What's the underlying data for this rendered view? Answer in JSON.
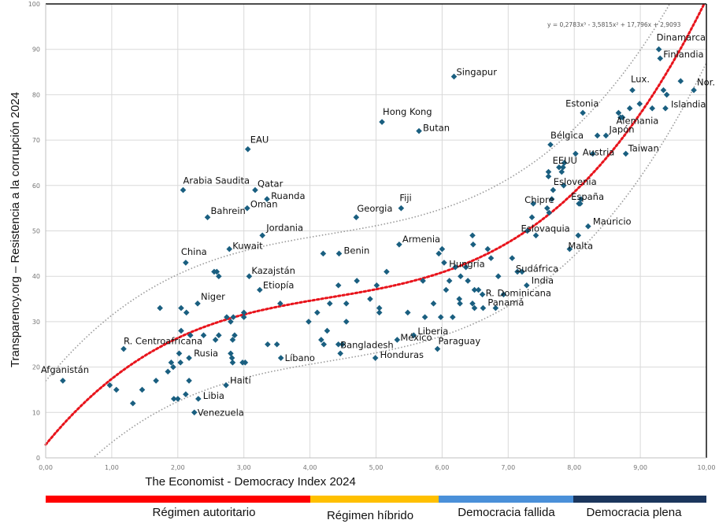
{
  "chart_data": {
    "type": "scatter",
    "title": "",
    "xlabel": "The Economist  - Democracy Index 2024",
    "ylabel": "Transparency.org – Resistencia a la corrupción 2024",
    "xlim": [
      0,
      10
    ],
    "ylim": [
      0,
      100
    ],
    "x_ticks": [
      "0,00",
      "1,00",
      "2,00",
      "3,00",
      "4,00",
      "5,00",
      "6,00",
      "7,00",
      "8,00",
      "9,00",
      "10,00"
    ],
    "y_ticks": [
      "0",
      "10",
      "20",
      "30",
      "40",
      "50",
      "60",
      "70",
      "80",
      "90",
      "100"
    ],
    "grid": true,
    "marker_color": "#1a5f80",
    "trendline": {
      "type": "polynomial",
      "order": 3,
      "equation": "y = 0,2783x³ - 3,5815x² + 17,796x + 2,9093",
      "coefficients": [
        0.2783,
        -3.5815,
        17.796,
        2.9093
      ],
      "color": "#e8141c",
      "band_color": "#9a9a9a",
      "band_offset": 14
    },
    "points": [
      {
        "x": 0.26,
        "y": 17,
        "label": "Afganistán"
      },
      {
        "x": 1.18,
        "y": 24,
        "label": "R. Centroafricana"
      },
      {
        "x": 2.17,
        "y": 22,
        "label": "Rusia"
      },
      {
        "x": 2.12,
        "y": 43,
        "label": "China"
      },
      {
        "x": 2.3,
        "y": 34,
        "label": "Niger"
      },
      {
        "x": 2.08,
        "y": 59,
        "label": "Arabia Saudita"
      },
      {
        "x": 2.45,
        "y": 53,
        "label": "Bahrein"
      },
      {
        "x": 2.78,
        "y": 46,
        "label": "Kuwait"
      },
      {
        "x": 3.06,
        "y": 68,
        "label": "EAU"
      },
      {
        "x": 3.17,
        "y": 59,
        "label": "Qatar"
      },
      {
        "x": 3.35,
        "y": 57,
        "label": "Ruanda"
      },
      {
        "x": 3.05,
        "y": 55,
        "label": "Oman"
      },
      {
        "x": 3.28,
        "y": 49,
        "label": "Jordania"
      },
      {
        "x": 3.08,
        "y": 40,
        "label": "Kazajstán"
      },
      {
        "x": 3.24,
        "y": 37,
        "label": "Etiopía"
      },
      {
        "x": 3.56,
        "y": 22,
        "label": "Líbano"
      },
      {
        "x": 2.73,
        "y": 16,
        "label": "Haití"
      },
      {
        "x": 2.31,
        "y": 13,
        "label": "Libia"
      },
      {
        "x": 2.25,
        "y": 10,
        "label": "Venezuela"
      },
      {
        "x": 4.2,
        "y": 45,
        "label": ""
      },
      {
        "x": 4.44,
        "y": 45,
        "label": "Benin"
      },
      {
        "x": 4.7,
        "y": 53,
        "label": "Georgia"
      },
      {
        "x": 5.38,
        "y": 55,
        "label": "Fiji"
      },
      {
        "x": 5.35,
        "y": 47,
        "label": "Armenia"
      },
      {
        "x": 5.09,
        "y": 74,
        "label": "Hong Kong"
      },
      {
        "x": 5.65,
        "y": 72,
        "label": "Butan"
      },
      {
        "x": 6.18,
        "y": 84,
        "label": "Singapur"
      },
      {
        "x": 4.99,
        "y": 22,
        "label": "Honduras"
      },
      {
        "x": 4.46,
        "y": 23,
        "label": "Bangladesh"
      },
      {
        "x": 5.32,
        "y": 26,
        "label": "México"
      },
      {
        "x": 5.57,
        "y": 27,
        "label": "Liberia"
      },
      {
        "x": 5.93,
        "y": 24,
        "label": "Paraguay"
      },
      {
        "x": 6.2,
        "y": 42,
        "label": "Hungría"
      },
      {
        "x": 6.61,
        "y": 36,
        "label": "R. Dominicana"
      },
      {
        "x": 6.81,
        "y": 33,
        "label": "Panamá"
      },
      {
        "x": 7.28,
        "y": 38,
        "label": "India"
      },
      {
        "x": 7.21,
        "y": 41,
        "label": "Sudáfrica"
      },
      {
        "x": 7.42,
        "y": 49,
        "label": "Eslovaquia"
      },
      {
        "x": 7.93,
        "y": 46,
        "label": "Malta"
      },
      {
        "x": 8.21,
        "y": 51,
        "label": "Mauricio"
      },
      {
        "x": 7.38,
        "y": 56,
        "label": "Chipre"
      },
      {
        "x": 8.07,
        "y": 56,
        "label": "España"
      },
      {
        "x": 7.84,
        "y": 60,
        "label": "Eslovenia"
      },
      {
        "x": 7.85,
        "y": 65,
        "label": "EEUU"
      },
      {
        "x": 8.28,
        "y": 67,
        "label": "Austria"
      },
      {
        "x": 8.78,
        "y": 67,
        "label": "Taiwan"
      },
      {
        "x": 7.64,
        "y": 69,
        "label": "Bélgica"
      },
      {
        "x": 8.48,
        "y": 71,
        "label": "Japón"
      },
      {
        "x": 8.13,
        "y": 76,
        "label": "Estonia"
      },
      {
        "x": 8.73,
        "y": 75,
        "label": "Alemania"
      },
      {
        "x": 8.88,
        "y": 81,
        "label": "Lux."
      },
      {
        "x": 9.38,
        "y": 77,
        "label": "Islandia"
      },
      {
        "x": 9.28,
        "y": 90,
        "label": "Dinamarca"
      },
      {
        "x": 9.3,
        "y": 88,
        "label": "Finlandia"
      },
      {
        "x": 9.81,
        "y": 81,
        "label": "Nor."
      },
      {
        "x": 9.61,
        "y": 83,
        "label": ""
      },
      {
        "x": 9.35,
        "y": 81,
        "label": ""
      },
      {
        "x": 9.4,
        "y": 80,
        "label": ""
      },
      {
        "x": 8.99,
        "y": 78,
        "label": ""
      },
      {
        "x": 9.18,
        "y": 77,
        "label": ""
      },
      {
        "x": 8.84,
        "y": 77,
        "label": ""
      },
      {
        "x": 8.67,
        "y": 76,
        "label": ""
      },
      {
        "x": 8.7,
        "y": 75,
        "label": ""
      },
      {
        "x": 8.35,
        "y": 71,
        "label": ""
      },
      {
        "x": 8.02,
        "y": 67,
        "label": ""
      },
      {
        "x": 7.83,
        "y": 64,
        "label": ""
      },
      {
        "x": 7.77,
        "y": 64,
        "label": ""
      },
      {
        "x": 7.81,
        "y": 63,
        "label": ""
      },
      {
        "x": 7.61,
        "y": 63,
        "label": ""
      },
      {
        "x": 7.61,
        "y": 62,
        "label": ""
      },
      {
        "x": 7.68,
        "y": 59,
        "label": ""
      },
      {
        "x": 7.66,
        "y": 57,
        "label": ""
      },
      {
        "x": 7.36,
        "y": 53,
        "label": ""
      },
      {
        "x": 7.62,
        "y": 54,
        "label": ""
      },
      {
        "x": 8.1,
        "y": 57,
        "label": ""
      },
      {
        "x": 8.09,
        "y": 56,
        "label": ""
      },
      {
        "x": 8.06,
        "y": 49,
        "label": ""
      },
      {
        "x": 7.59,
        "y": 55,
        "label": ""
      },
      {
        "x": 7.29,
        "y": 50,
        "label": ""
      },
      {
        "x": 7.06,
        "y": 44,
        "label": ""
      },
      {
        "x": 7.14,
        "y": 41,
        "label": ""
      },
      {
        "x": 6.93,
        "y": 36,
        "label": ""
      },
      {
        "x": 6.85,
        "y": 40,
        "label": ""
      },
      {
        "x": 6.69,
        "y": 46,
        "label": ""
      },
      {
        "x": 6.74,
        "y": 44,
        "label": ""
      },
      {
        "x": 6.55,
        "y": 37,
        "label": ""
      },
      {
        "x": 6.49,
        "y": 37,
        "label": ""
      },
      {
        "x": 6.46,
        "y": 49,
        "label": ""
      },
      {
        "x": 6.47,
        "y": 47,
        "label": ""
      },
      {
        "x": 6.36,
        "y": 42,
        "label": ""
      },
      {
        "x": 6.39,
        "y": 39,
        "label": ""
      },
      {
        "x": 6.28,
        "y": 40,
        "label": ""
      },
      {
        "x": 6.26,
        "y": 35,
        "label": ""
      },
      {
        "x": 6.27,
        "y": 34,
        "label": ""
      },
      {
        "x": 6.46,
        "y": 34,
        "label": ""
      },
      {
        "x": 6.49,
        "y": 33,
        "label": ""
      },
      {
        "x": 6.62,
        "y": 33,
        "label": ""
      },
      {
        "x": 6.16,
        "y": 31,
        "label": ""
      },
      {
        "x": 6.03,
        "y": 43,
        "label": ""
      },
      {
        "x": 6.11,
        "y": 39,
        "label": ""
      },
      {
        "x": 6.06,
        "y": 37,
        "label": ""
      },
      {
        "x": 5.95,
        "y": 45,
        "label": ""
      },
      {
        "x": 6.0,
        "y": 46,
        "label": ""
      },
      {
        "x": 5.98,
        "y": 31,
        "label": ""
      },
      {
        "x": 5.87,
        "y": 34,
        "label": ""
      },
      {
        "x": 5.74,
        "y": 31,
        "label": ""
      },
      {
        "x": 5.71,
        "y": 39,
        "label": ""
      },
      {
        "x": 5.48,
        "y": 32,
        "label": ""
      },
      {
        "x": 5.16,
        "y": 41,
        "label": ""
      },
      {
        "x": 5.01,
        "y": 38,
        "label": ""
      },
      {
        "x": 5.05,
        "y": 33,
        "label": ""
      },
      {
        "x": 5.05,
        "y": 32,
        "label": ""
      },
      {
        "x": 4.91,
        "y": 35,
        "label": ""
      },
      {
        "x": 4.71,
        "y": 39,
        "label": ""
      },
      {
        "x": 4.55,
        "y": 30,
        "label": ""
      },
      {
        "x": 4.43,
        "y": 38,
        "label": ""
      },
      {
        "x": 4.55,
        "y": 34,
        "label": ""
      },
      {
        "x": 4.3,
        "y": 34,
        "label": ""
      },
      {
        "x": 4.26,
        "y": 28,
        "label": ""
      },
      {
        "x": 4.17,
        "y": 26,
        "label": ""
      },
      {
        "x": 4.11,
        "y": 32,
        "label": ""
      },
      {
        "x": 3.98,
        "y": 30,
        "label": ""
      },
      {
        "x": 4.21,
        "y": 25,
        "label": ""
      },
      {
        "x": 4.43,
        "y": 25,
        "label": ""
      },
      {
        "x": 4.49,
        "y": 25,
        "label": ""
      },
      {
        "x": 3.5,
        "y": 25,
        "label": ""
      },
      {
        "x": 3.36,
        "y": 25,
        "label": ""
      },
      {
        "x": 3.55,
        "y": 34,
        "label": ""
      },
      {
        "x": 3.0,
        "y": 31,
        "label": ""
      },
      {
        "x": 3.0,
        "y": 32,
        "label": ""
      },
      {
        "x": 2.84,
        "y": 31,
        "label": ""
      },
      {
        "x": 2.74,
        "y": 31,
        "label": ""
      },
      {
        "x": 2.86,
        "y": 27,
        "label": ""
      },
      {
        "x": 2.83,
        "y": 26,
        "label": ""
      },
      {
        "x": 2.57,
        "y": 26,
        "label": ""
      },
      {
        "x": 2.62,
        "y": 27,
        "label": ""
      },
      {
        "x": 2.8,
        "y": 23,
        "label": ""
      },
      {
        "x": 2.82,
        "y": 22,
        "label": ""
      },
      {
        "x": 2.83,
        "y": 21,
        "label": ""
      },
      {
        "x": 2.98,
        "y": 21,
        "label": ""
      },
      {
        "x": 3.02,
        "y": 21,
        "label": ""
      },
      {
        "x": 2.8,
        "y": 30,
        "label": ""
      },
      {
        "x": 2.55,
        "y": 41,
        "label": ""
      },
      {
        "x": 2.59,
        "y": 41,
        "label": ""
      },
      {
        "x": 2.62,
        "y": 40,
        "label": ""
      },
      {
        "x": 2.39,
        "y": 27,
        "label": ""
      },
      {
        "x": 2.05,
        "y": 28,
        "label": ""
      },
      {
        "x": 2.19,
        "y": 27,
        "label": ""
      },
      {
        "x": 2.05,
        "y": 33,
        "label": ""
      },
      {
        "x": 2.13,
        "y": 32,
        "label": ""
      },
      {
        "x": 1.73,
        "y": 33,
        "label": ""
      },
      {
        "x": 2.02,
        "y": 23,
        "label": ""
      },
      {
        "x": 2.04,
        "y": 21,
        "label": ""
      },
      {
        "x": 1.9,
        "y": 21,
        "label": ""
      },
      {
        "x": 1.93,
        "y": 20,
        "label": ""
      },
      {
        "x": 1.85,
        "y": 19,
        "label": ""
      },
      {
        "x": 2.17,
        "y": 17,
        "label": ""
      },
      {
        "x": 1.67,
        "y": 17,
        "label": ""
      },
      {
        "x": 1.46,
        "y": 15,
        "label": ""
      },
      {
        "x": 1.07,
        "y": 15,
        "label": ""
      },
      {
        "x": 0.97,
        "y": 16,
        "label": ""
      },
      {
        "x": 1.32,
        "y": 12,
        "label": ""
      },
      {
        "x": 1.94,
        "y": 13,
        "label": ""
      },
      {
        "x": 2.0,
        "y": 13,
        "label": ""
      },
      {
        "x": 2.12,
        "y": 14,
        "label": ""
      }
    ]
  },
  "regimes": [
    {
      "label": "Régimen autoritario",
      "from": 0,
      "to": 4.0,
      "color": "#ff0000"
    },
    {
      "label": "Régimen híbrido",
      "from": 4.0,
      "to": 5.95,
      "color": "#ffc000"
    },
    {
      "label": "Democracia fallida",
      "from": 5.95,
      "to": 7.98,
      "color": "#4a90d9"
    },
    {
      "label": "Democracia plena",
      "from": 7.98,
      "to": 10.0,
      "color": "#1b365d"
    }
  ]
}
